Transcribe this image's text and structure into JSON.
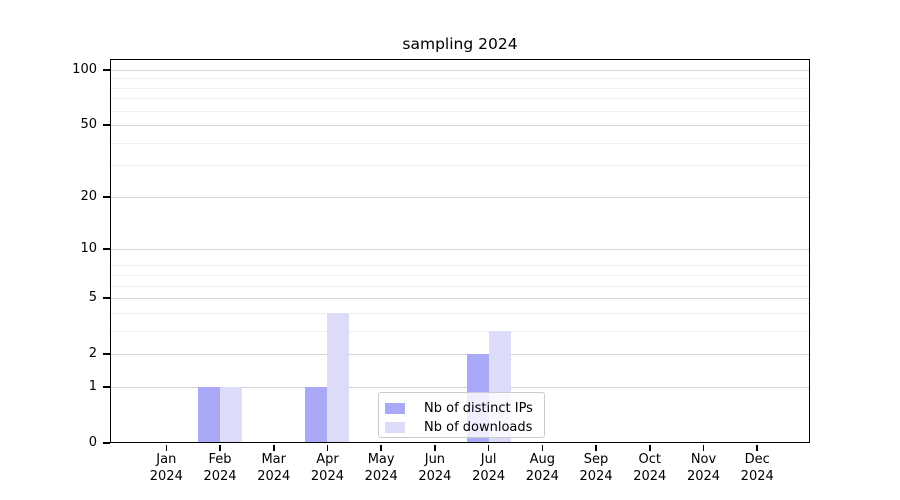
{
  "title": "sampling 2024",
  "chart_data": {
    "type": "bar",
    "title": "sampling 2024",
    "categories": [
      "Jan",
      "Feb",
      "Mar",
      "Apr",
      "May",
      "Jun",
      "Jul",
      "Aug",
      "Sep",
      "Oct",
      "Nov",
      "Dec"
    ],
    "year_label": "2024",
    "series": [
      {
        "name": "Nb of distinct IPs",
        "color": "#a9a9f8",
        "values": [
          0,
          1,
          0,
          1,
          0,
          0,
          2,
          0,
          0,
          0,
          0,
          0
        ]
      },
      {
        "name": "Nb of downloads",
        "color": "#dcdcf8",
        "values": [
          0,
          1,
          0,
          4,
          0,
          0,
          3,
          0,
          0,
          0,
          0,
          0
        ]
      }
    ],
    "y_axis": {
      "scale": "log10(1+value)",
      "major_ticks": [
        0,
        1,
        2,
        5,
        10,
        20,
        50,
        100
      ],
      "minor_gridlines": [
        3,
        4,
        6,
        7,
        8,
        30,
        40,
        60,
        70,
        80,
        90
      ],
      "range": [
        0,
        115
      ]
    },
    "legend": {
      "position": "bottom-center",
      "labels": [
        "Nb of distinct IPs",
        "Nb of downloads"
      ]
    },
    "grid": true
  },
  "colors": {
    "bar_distinct_ips": "#a9a9f8",
    "bar_downloads": "#dcdcf8",
    "major_grid": "#d4d4d4",
    "minor_grid": "#efefef",
    "axis": "#000000",
    "legend_border": "#cbcbcb"
  }
}
